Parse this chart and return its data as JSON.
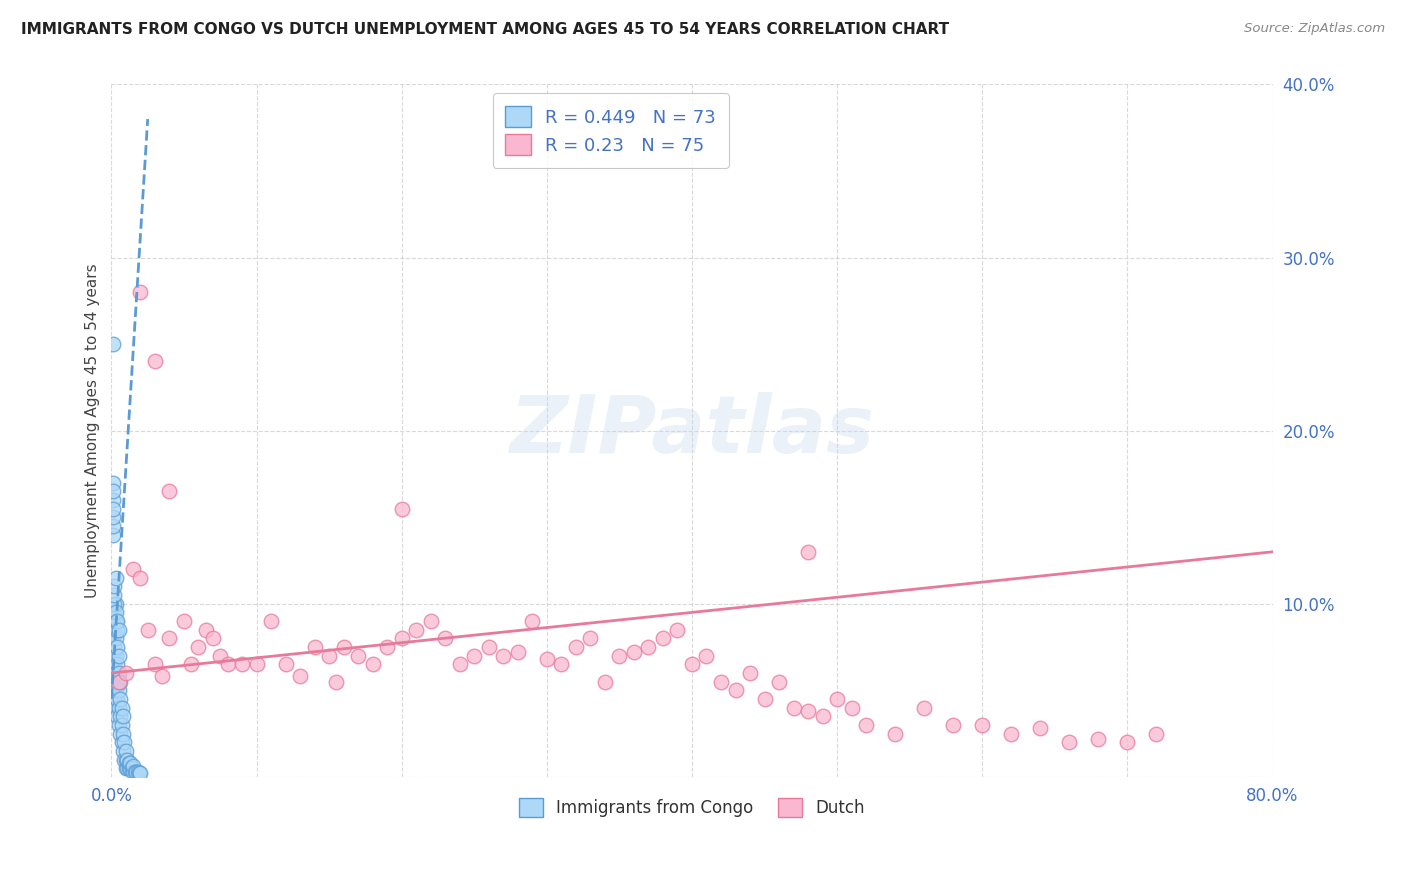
{
  "title": "IMMIGRANTS FROM CONGO VS DUTCH UNEMPLOYMENT AMONG AGES 45 TO 54 YEARS CORRELATION CHART",
  "source": "Source: ZipAtlas.com",
  "ylabel": "Unemployment Among Ages 45 to 54 years",
  "xlim": [
    0,
    0.8
  ],
  "ylim": [
    0,
    0.4
  ],
  "xticks": [
    0.0,
    0.1,
    0.2,
    0.3,
    0.4,
    0.5,
    0.6,
    0.7,
    0.8
  ],
  "yticks": [
    0.0,
    0.1,
    0.2,
    0.3,
    0.4
  ],
  "xtick_labels": [
    "0.0%",
    "",
    "",
    "",
    "",
    "",
    "",
    "",
    "80.0%"
  ],
  "ytick_labels": [
    "",
    "10.0%",
    "20.0%",
    "30.0%",
    "40.0%"
  ],
  "legend_label1": "Immigrants from Congo",
  "legend_label2": "Dutch",
  "R1": 0.449,
  "N1": 73,
  "R2": 0.23,
  "N2": 75,
  "color1": "#add8f7",
  "color2": "#f9b8d0",
  "line_color1": "#5b9bd5",
  "line_color2": "#e8799a",
  "watermark": "ZIPatlas",
  "background_color": "#ffffff",
  "grid_color": "#d0d0d0",
  "title_color": "#222222",
  "axis_label_color": "#444444",
  "tick_color": "#4472c4",
  "blue_points_x": [
    0.001,
    0.001,
    0.001,
    0.001,
    0.001,
    0.002,
    0.002,
    0.002,
    0.002,
    0.002,
    0.002,
    0.003,
    0.003,
    0.003,
    0.003,
    0.003,
    0.003,
    0.003,
    0.004,
    0.004,
    0.004,
    0.004,
    0.004,
    0.004,
    0.005,
    0.005,
    0.005,
    0.005,
    0.005,
    0.006,
    0.006,
    0.006,
    0.006,
    0.007,
    0.007,
    0.007,
    0.008,
    0.008,
    0.008,
    0.009,
    0.009,
    0.01,
    0.01,
    0.01,
    0.011,
    0.011,
    0.012,
    0.012,
    0.013,
    0.013,
    0.014,
    0.015,
    0.015,
    0.016,
    0.017,
    0.018,
    0.019,
    0.02,
    0.001,
    0.001,
    0.001,
    0.001,
    0.001,
    0.001,
    0.001,
    0.002,
    0.002,
    0.003,
    0.004,
    0.001,
    0.005,
    0.002,
    0.003
  ],
  "blue_points_y": [
    0.05,
    0.06,
    0.07,
    0.08,
    0.09,
    0.045,
    0.055,
    0.065,
    0.075,
    0.085,
    0.095,
    0.04,
    0.05,
    0.06,
    0.07,
    0.08,
    0.09,
    0.1,
    0.035,
    0.045,
    0.055,
    0.065,
    0.075,
    0.085,
    0.03,
    0.04,
    0.05,
    0.06,
    0.07,
    0.025,
    0.035,
    0.045,
    0.055,
    0.02,
    0.03,
    0.04,
    0.015,
    0.025,
    0.035,
    0.01,
    0.02,
    0.005,
    0.01,
    0.015,
    0.005,
    0.01,
    0.005,
    0.008,
    0.005,
    0.008,
    0.005,
    0.003,
    0.006,
    0.003,
    0.003,
    0.003,
    0.002,
    0.002,
    0.16,
    0.17,
    0.14,
    0.145,
    0.15,
    0.155,
    0.165,
    0.1,
    0.105,
    0.095,
    0.09,
    0.25,
    0.085,
    0.11,
    0.115
  ],
  "pink_points_x": [
    0.005,
    0.01,
    0.015,
    0.02,
    0.025,
    0.03,
    0.035,
    0.04,
    0.05,
    0.055,
    0.06,
    0.065,
    0.07,
    0.075,
    0.08,
    0.09,
    0.1,
    0.11,
    0.12,
    0.13,
    0.14,
    0.15,
    0.155,
    0.16,
    0.17,
    0.18,
    0.19,
    0.2,
    0.21,
    0.22,
    0.23,
    0.24,
    0.25,
    0.26,
    0.27,
    0.28,
    0.29,
    0.3,
    0.31,
    0.32,
    0.33,
    0.34,
    0.35,
    0.36,
    0.37,
    0.38,
    0.39,
    0.4,
    0.41,
    0.42,
    0.43,
    0.44,
    0.45,
    0.46,
    0.47,
    0.48,
    0.49,
    0.5,
    0.51,
    0.52,
    0.54,
    0.56,
    0.58,
    0.6,
    0.62,
    0.64,
    0.66,
    0.68,
    0.7,
    0.72,
    0.02,
    0.03,
    0.04,
    0.2,
    0.48
  ],
  "pink_points_y": [
    0.055,
    0.06,
    0.12,
    0.115,
    0.085,
    0.065,
    0.058,
    0.08,
    0.09,
    0.065,
    0.075,
    0.085,
    0.08,
    0.07,
    0.065,
    0.065,
    0.065,
    0.09,
    0.065,
    0.058,
    0.075,
    0.07,
    0.055,
    0.075,
    0.07,
    0.065,
    0.075,
    0.08,
    0.085,
    0.09,
    0.08,
    0.065,
    0.07,
    0.075,
    0.07,
    0.072,
    0.09,
    0.068,
    0.065,
    0.075,
    0.08,
    0.055,
    0.07,
    0.072,
    0.075,
    0.08,
    0.085,
    0.065,
    0.07,
    0.055,
    0.05,
    0.06,
    0.045,
    0.055,
    0.04,
    0.038,
    0.035,
    0.045,
    0.04,
    0.03,
    0.025,
    0.04,
    0.03,
    0.03,
    0.025,
    0.028,
    0.02,
    0.022,
    0.02,
    0.025,
    0.28,
    0.24,
    0.165,
    0.155,
    0.13
  ],
  "blue_trend_x0": 0.0,
  "blue_trend_y0": 0.045,
  "blue_trend_x1": 0.025,
  "blue_trend_y1": 0.38,
  "pink_trend_x0": 0.0,
  "pink_trend_x1": 0.8,
  "pink_trend_y0": 0.06,
  "pink_trend_y1": 0.13
}
